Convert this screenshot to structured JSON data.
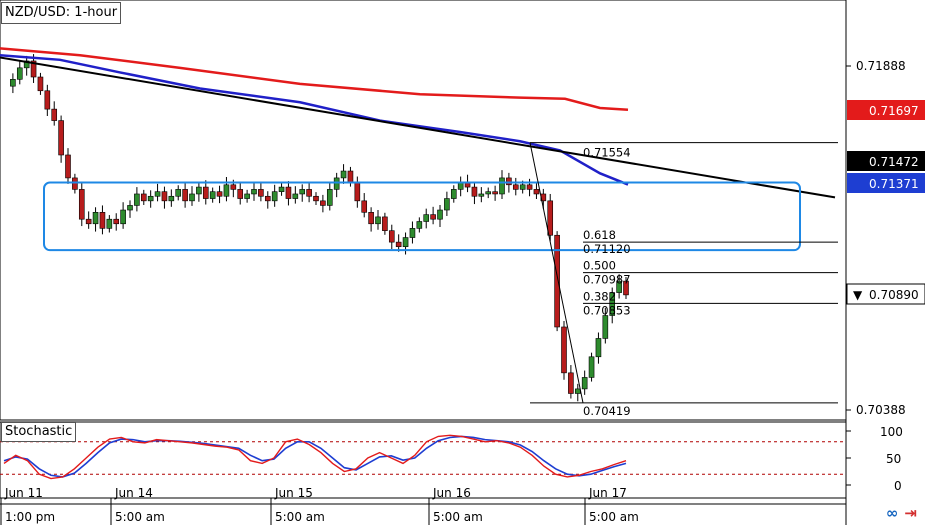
{
  "title": "NZD/USD: 1-hour",
  "stochastic_label": "Stochastic",
  "colors": {
    "ma_slow": "#e31b1b",
    "ma_fast": "#2020c8",
    "trendline": "#000000",
    "range_box": "#1e88e5",
    "bull_candle": "#2e8b2e",
    "bear_candle": "#b71c1c",
    "stoch_k": "#e31b1b",
    "stoch_d": "#1e3ed2",
    "stoch_levels": "#b00000"
  },
  "chart_data": {
    "type": "candlestick",
    "instrument": "NZD/USD",
    "timeframe": "1-hour",
    "y_ticks": [
      "0.71888",
      "0.70388"
    ],
    "price_labels": [
      {
        "value": "0.71697",
        "color": "#e31b1b"
      },
      {
        "value": "0.71472",
        "color": "#000000"
      },
      {
        "value": "0.71371",
        "color": "#1e3ed2"
      },
      {
        "value": "0.70890",
        "color": "#ffffff"
      }
    ],
    "x_date_labels": [
      "Jun 11",
      "Jun 14",
      "Jun 15",
      "Jun 16",
      "Jun 17"
    ],
    "x_time_labels": [
      "1:00 pm",
      "5:00 am",
      "5:00 am",
      "5:00 am",
      "5:00 am"
    ],
    "fibonacci": {
      "high": "0.71554",
      "low": "0.70419",
      "levels": [
        {
          "ratio": "0.618",
          "price": "0.71120"
        },
        {
          "ratio": "0.500",
          "price": "0.70987"
        },
        {
          "ratio": "0.382",
          "price": "0.70853"
        }
      ]
    },
    "close_series": [
      0.718,
      0.7183,
      0.7188,
      0.7191,
      0.7184,
      0.7178,
      0.717,
      0.7165,
      0.715,
      0.714,
      0.7135,
      0.7122,
      0.712,
      0.7125,
      0.7118,
      0.7122,
      0.712,
      0.7126,
      0.7128,
      0.7133,
      0.713,
      0.7132,
      0.7134,
      0.713,
      0.7132,
      0.7135,
      0.713,
      0.7133,
      0.7136,
      0.7131,
      0.7134,
      0.7132,
      0.7137,
      0.7135,
      0.7131,
      0.7133,
      0.7135,
      0.7132,
      0.713,
      0.7134,
      0.7136,
      0.7131,
      0.7133,
      0.7135,
      0.7132,
      0.713,
      0.7128,
      0.7135,
      0.714,
      0.7143,
      0.7138,
      0.713,
      0.7125,
      0.712,
      0.7123,
      0.7117,
      0.7112,
      0.711,
      0.7114,
      0.7118,
      0.7121,
      0.7124,
      0.7122,
      0.7126,
      0.7131,
      0.7135,
      0.7138,
      0.7136,
      0.7132,
      0.7133,
      0.7134,
      0.7133,
      0.714,
      0.7137,
      0.7135,
      0.7137,
      0.7135,
      0.7133,
      0.713,
      0.7115,
      0.7075,
      0.7055,
      0.7046,
      0.7048,
      0.7053,
      0.7062,
      0.707,
      0.708,
      0.709,
      0.7095,
      0.7089
    ],
    "stochastic": {
      "levels": [
        80,
        20
      ],
      "ticks": [
        "100",
        "50",
        "0"
      ],
      "k": [
        40,
        55,
        45,
        20,
        12,
        15,
        30,
        50,
        70,
        85,
        88,
        80,
        78,
        84,
        82,
        80,
        78,
        75,
        72,
        70,
        65,
        45,
        40,
        50,
        80,
        85,
        75,
        60,
        40,
        25,
        30,
        50,
        60,
        50,
        40,
        55,
        80,
        90,
        92,
        90,
        85,
        80,
        82,
        78,
        70,
        55,
        35,
        20,
        15,
        18,
        25,
        30,
        38,
        45
      ],
      "d": [
        45,
        52,
        48,
        30,
        18,
        15,
        22,
        40,
        60,
        78,
        85,
        84,
        80,
        82,
        82,
        81,
        79,
        77,
        74,
        71,
        68,
        55,
        45,
        48,
        68,
        80,
        80,
        68,
        50,
        32,
        28,
        40,
        52,
        54,
        46,
        50,
        68,
        82,
        88,
        90,
        88,
        84,
        82,
        80,
        74,
        62,
        45,
        30,
        20,
        17,
        20,
        27,
        34,
        40
      ]
    }
  }
}
